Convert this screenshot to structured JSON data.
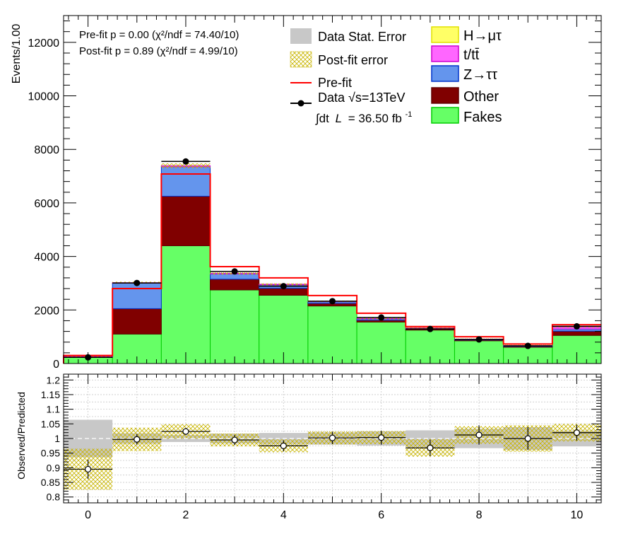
{
  "chart_data": [
    {
      "type": "stacked-bar",
      "ylabel": "Events/1.00",
      "xlim": [
        -0.5,
        10.5
      ],
      "ylim": [
        0,
        13000
      ],
      "x_ticks": [
        0,
        2,
        4,
        6,
        8,
        10
      ],
      "y_ticks": [
        0,
        2000,
        4000,
        6000,
        8000,
        10000,
        12000
      ],
      "bins": [
        0,
        1,
        2,
        3,
        4,
        5,
        6,
        7,
        8,
        9,
        10
      ],
      "fit_text": {
        "prefit": "Pre-fit   p = 0.00 (χ²/ndf = 74.40/10)",
        "postfit": "Post-fit p = 0.89 (χ²/ndf = 4.99/10)"
      },
      "series": [
        {
          "name": "Fakes",
          "color": "#66ff66",
          "edge": "#00cc00",
          "values": [
            230,
            1100,
            4400,
            2750,
            2550,
            2150,
            1550,
            1250,
            850,
            610,
            1050
          ]
        },
        {
          "name": "Other",
          "color": "#800000",
          "edge": "#600000",
          "values": [
            20,
            950,
            1850,
            400,
            260,
            100,
            70,
            40,
            30,
            30,
            160
          ]
        },
        {
          "name": "Z→ττ",
          "color": "#6495ed",
          "edge": "#0033cc",
          "values": [
            10,
            950,
            1100,
            200,
            130,
            60,
            50,
            30,
            20,
            20,
            80
          ]
        },
        {
          "name": "t/tt̄",
          "color": "#ff66ff",
          "edge": "#cc00cc",
          "values": [
            2,
            20,
            40,
            15,
            20,
            15,
            10,
            10,
            10,
            10,
            80
          ]
        },
        {
          "name": "H→μτ",
          "color": "#ffff66",
          "edge": "#e0e000",
          "values": [
            0,
            0,
            0,
            0,
            0,
            0,
            0,
            0,
            0,
            0,
            0
          ]
        }
      ],
      "prefit_total": [
        300,
        2800,
        7080,
        3620,
        3200,
        2540,
        1880,
        1380,
        1000,
        730,
        1450
      ],
      "data": {
        "name": "Data",
        "values": [
          230,
          3010,
          7550,
          3440,
          2890,
          2330,
          1720,
          1290,
          900,
          660,
          1390
        ]
      },
      "legend": {
        "stat_error": "Data Stat. Error",
        "postfit_error": "Post-fit error",
        "prefit": "Pre-fit",
        "data": "Data  √s=13TeV",
        "lumi_prefix": "∫dt",
        "lumi_L": "L",
        "lumi_value": "= 36.50 fb",
        "lumi_exp": "-1",
        "position": "top"
      }
    },
    {
      "type": "ratio",
      "ylabel": "Observed/Predicted",
      "xlim": [
        -0.5,
        10.5
      ],
      "ylim": [
        0.78,
        1.22
      ],
      "y_ticks": [
        0.8,
        0.85,
        0.9,
        0.95,
        1,
        1.05,
        1.1,
        1.15,
        1.2
      ],
      "y_tick_labels": [
        "0.8",
        "0.85",
        "0.9",
        "0.95",
        "1",
        "1.05",
        "1.1",
        "1.15",
        "1.2"
      ],
      "x_ticks": [
        0,
        2,
        4,
        6,
        8,
        10
      ],
      "grid": true,
      "ratio": [
        0.895,
        0.997,
        1.024,
        0.995,
        0.975,
        1.002,
        1.003,
        0.968,
        1.012,
        1.0,
        1.02
      ],
      "ratio_err": [
        0.033,
        0.018,
        0.012,
        0.017,
        0.019,
        0.021,
        0.024,
        0.028,
        0.033,
        0.039,
        0.027
      ],
      "stat_band": [
        0.064,
        0.018,
        0.012,
        0.017,
        0.019,
        0.021,
        0.024,
        0.028,
        0.033,
        0.039,
        0.027
      ],
      "postfit_band": [
        0.07,
        0.04,
        0.025,
        0.022,
        0.022,
        0.022,
        0.022,
        0.03,
        0.03,
        0.045,
        0.03
      ]
    }
  ]
}
